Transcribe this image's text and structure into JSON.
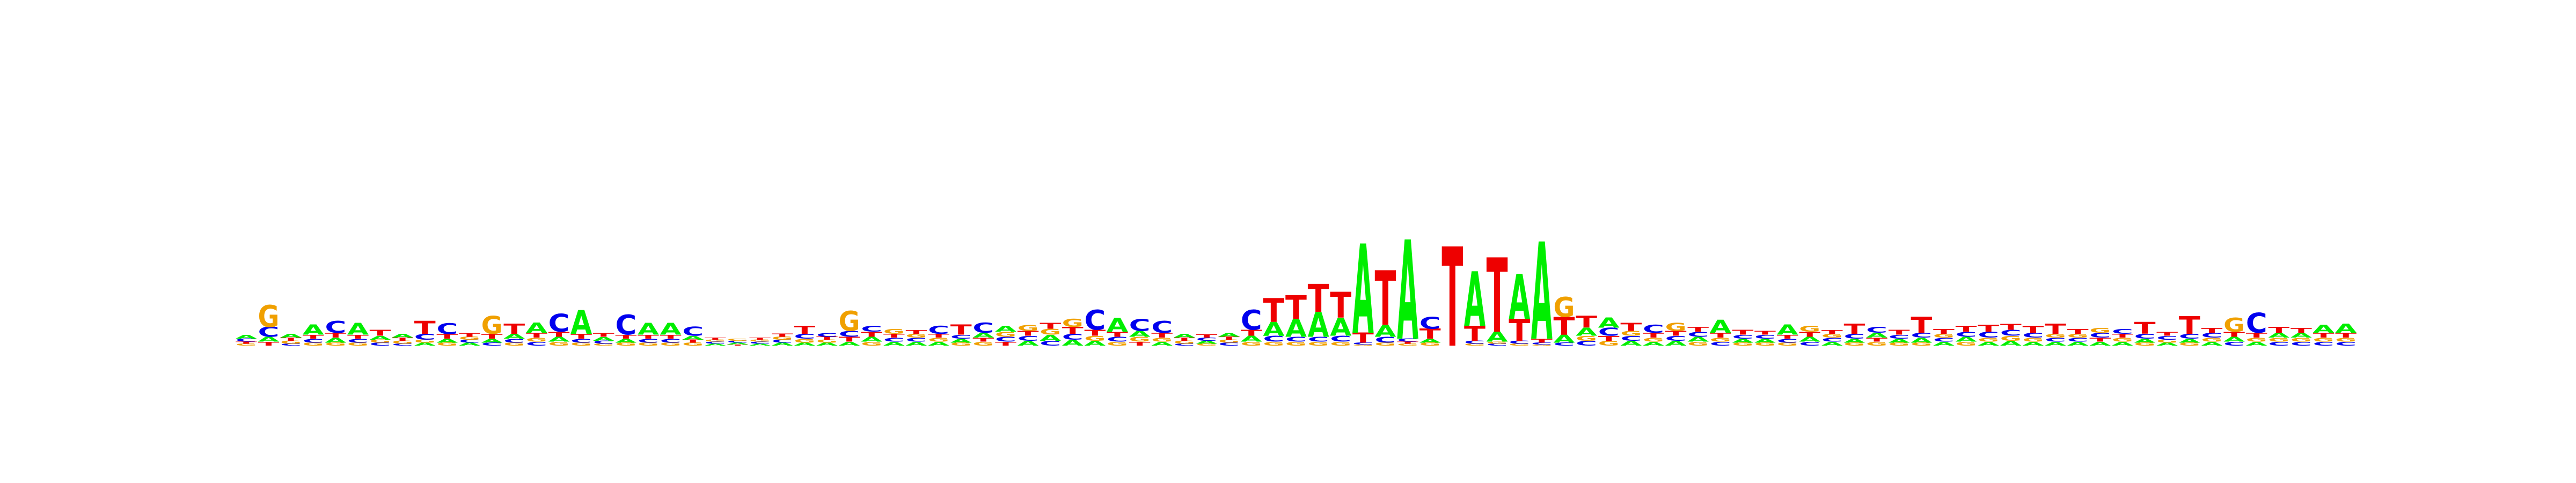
{
  "chart_data": {
    "type": "sequence-logo",
    "alphabet": [
      "A",
      "C",
      "G",
      "T"
    ],
    "colors": {
      "A": "#00ee00",
      "C": "#0000ee",
      "G": "#f0a000",
      "T": "#ee0000"
    },
    "ylim": [
      0,
      2
    ],
    "title": "",
    "xlabel": "",
    "ylabel": "",
    "axes_visible": false,
    "grid": false,
    "positions": [
      {
        "A": 0.04,
        "C": 0.03,
        "G": 0.02,
        "T": 0.02
      },
      {
        "A": 0.05,
        "C": 0.1,
        "G": 0.22,
        "T": 0.04
      },
      {
        "A": 0.04,
        "C": 0.02,
        "G": 0.03,
        "T": 0.03
      },
      {
        "A": 0.1,
        "C": 0.04,
        "G": 0.03,
        "T": 0.04
      },
      {
        "A": 0.05,
        "C": 0.12,
        "G": 0.03,
        "T": 0.05
      },
      {
        "A": 0.12,
        "C": 0.04,
        "G": 0.03,
        "T": 0.04
      },
      {
        "A": 0.04,
        "C": 0.03,
        "G": 0.03,
        "T": 0.06
      },
      {
        "A": 0.04,
        "C": 0.02,
        "G": 0.03,
        "T": 0.03
      },
      {
        "A": 0.03,
        "C": 0.06,
        "G": 0.03,
        "T": 0.13
      },
      {
        "A": 0.04,
        "C": 0.11,
        "G": 0.03,
        "T": 0.05
      },
      {
        "A": 0.03,
        "C": 0.03,
        "G": 0.03,
        "T": 0.04
      },
      {
        "A": 0.04,
        "C": 0.03,
        "G": 0.18,
        "T": 0.05
      },
      {
        "A": 0.05,
        "C": 0.04,
        "G": 0.03,
        "T": 0.1
      },
      {
        "A": 0.1,
        "C": 0.04,
        "G": 0.04,
        "T": 0.05
      },
      {
        "A": 0.05,
        "C": 0.18,
        "G": 0.04,
        "T": 0.05
      },
      {
        "A": 0.24,
        "C": 0.04,
        "G": 0.03,
        "T": 0.05
      },
      {
        "A": 0.04,
        "C": 0.03,
        "G": 0.02,
        "T": 0.04
      },
      {
        "A": 0.04,
        "C": 0.2,
        "G": 0.03,
        "T": 0.04
      },
      {
        "A": 0.12,
        "C": 0.04,
        "G": 0.03,
        "T": 0.04
      },
      {
        "A": 0.12,
        "C": 0.04,
        "G": 0.03,
        "T": 0.04
      },
      {
        "A": 0.04,
        "C": 0.09,
        "G": 0.03,
        "T": 0.03
      },
      {
        "A": 0.02,
        "C": 0.02,
        "G": 0.02,
        "T": 0.02
      },
      {
        "A": 0.02,
        "C": 0.02,
        "G": 0.02,
        "T": 0.01
      },
      {
        "A": 0.02,
        "C": 0.02,
        "G": 0.02,
        "T": 0.02
      },
      {
        "A": 0.03,
        "C": 0.03,
        "G": 0.03,
        "T": 0.03
      },
      {
        "A": 0.03,
        "C": 0.05,
        "G": 0.04,
        "T": 0.08
      },
      {
        "A": 0.03,
        "C": 0.04,
        "G": 0.03,
        "T": 0.03
      },
      {
        "A": 0.04,
        "C": 0.06,
        "G": 0.2,
        "T": 0.05
      },
      {
        "A": 0.05,
        "C": 0.06,
        "G": 0.04,
        "T": 0.05
      },
      {
        "A": 0.04,
        "C": 0.04,
        "G": 0.05,
        "T": 0.04
      },
      {
        "A": 0.04,
        "C": 0.04,
        "G": 0.04,
        "T": 0.04
      },
      {
        "A": 0.04,
        "C": 0.08,
        "G": 0.04,
        "T": 0.04
      },
      {
        "A": 0.04,
        "C": 0.04,
        "G": 0.03,
        "T": 0.1
      },
      {
        "A": 0.05,
        "C": 0.1,
        "G": 0.04,
        "T": 0.04
      },
      {
        "A": 0.06,
        "C": 0.05,
        "G": 0.05,
        "T": 0.04
      },
      {
        "A": 0.05,
        "C": 0.05,
        "G": 0.06,
        "T": 0.05
      },
      {
        "A": 0.06,
        "C": 0.05,
        "G": 0.06,
        "T": 0.06
      },
      {
        "A": 0.06,
        "C": 0.06,
        "G": 0.08,
        "T": 0.07
      },
      {
        "A": 0.05,
        "C": 0.2,
        "G": 0.05,
        "T": 0.06
      },
      {
        "A": 0.14,
        "C": 0.05,
        "G": 0.04,
        "T": 0.05
      },
      {
        "A": 0.06,
        "C": 0.12,
        "G": 0.05,
        "T": 0.04
      },
      {
        "A": 0.04,
        "C": 0.12,
        "G": 0.04,
        "T": 0.05
      },
      {
        "A": 0.04,
        "C": 0.02,
        "G": 0.03,
        "T": 0.03
      },
      {
        "A": 0.03,
        "C": 0.03,
        "G": 0.02,
        "T": 0.03
      },
      {
        "A": 0.04,
        "C": 0.03,
        "G": 0.03,
        "T": 0.03
      },
      {
        "A": 0.06,
        "C": 0.2,
        "G": 0.04,
        "T": 0.06
      },
      {
        "A": 0.14,
        "C": 0.06,
        "G": 0.04,
        "T": 0.24
      },
      {
        "A": 0.18,
        "C": 0.05,
        "G": 0.04,
        "T": 0.24
      },
      {
        "A": 0.25,
        "C": 0.05,
        "G": 0.04,
        "T": 0.28
      },
      {
        "A": 0.18,
        "C": 0.06,
        "G": 0.04,
        "T": 0.26
      },
      {
        "A": 0.9,
        "C": 0.02,
        "G": 0.01,
        "T": 0.1
      },
      {
        "A": 0.12,
        "C": 0.06,
        "G": 0.03,
        "T": 0.55
      },
      {
        "A": 1.0,
        "C": 0.03,
        "G": 0.02,
        "T": 0.02
      },
      {
        "A": 0.04,
        "C": 0.12,
        "G": 0.03,
        "T": 0.1
      },
      {
        "A": 0.0,
        "C": 0.0,
        "G": 0.0,
        "T": 1.0
      },
      {
        "A": 0.55,
        "C": 0.03,
        "G": 0.02,
        "T": 0.15
      },
      {
        "A": 0.1,
        "C": 0.02,
        "G": 0.02,
        "T": 0.75
      },
      {
        "A": 0.45,
        "C": 0.03,
        "G": 0.02,
        "T": 0.22
      },
      {
        "A": 0.98,
        "C": 0.02,
        "G": 0.01,
        "T": 0.04
      },
      {
        "A": 0.08,
        "C": 0.03,
        "G": 0.2,
        "T": 0.18
      },
      {
        "A": 0.08,
        "C": 0.05,
        "G": 0.05,
        "T": 0.12
      },
      {
        "A": 0.1,
        "C": 0.08,
        "G": 0.05,
        "T": 0.05
      },
      {
        "A": 0.05,
        "C": 0.05,
        "G": 0.05,
        "T": 0.08
      },
      {
        "A": 0.04,
        "C": 0.08,
        "G": 0.04,
        "T": 0.05
      },
      {
        "A": 0.05,
        "C": 0.05,
        "G": 0.08,
        "T": 0.05
      },
      {
        "A": 0.05,
        "C": 0.05,
        "G": 0.04,
        "T": 0.05
      },
      {
        "A": 0.13,
        "C": 0.04,
        "G": 0.04,
        "T": 0.05
      },
      {
        "A": 0.04,
        "C": 0.04,
        "G": 0.03,
        "T": 0.05
      },
      {
        "A": 0.04,
        "C": 0.04,
        "G": 0.03,
        "T": 0.04
      },
      {
        "A": 0.1,
        "C": 0.04,
        "G": 0.03,
        "T": 0.04
      },
      {
        "A": 0.05,
        "C": 0.04,
        "G": 0.06,
        "T": 0.05
      },
      {
        "A": 0.04,
        "C": 0.04,
        "G": 0.04,
        "T": 0.04
      },
      {
        "A": 0.04,
        "C": 0.05,
        "G": 0.03,
        "T": 0.1
      },
      {
        "A": 0.05,
        "C": 0.06,
        "G": 0.04,
        "T": 0.04
      },
      {
        "A": 0.04,
        "C": 0.04,
        "G": 0.03,
        "T": 0.05
      },
      {
        "A": 0.05,
        "C": 0.05,
        "G": 0.03,
        "T": 0.16
      },
      {
        "A": 0.04,
        "C": 0.04,
        "G": 0.04,
        "T": 0.05
      },
      {
        "A": 0.05,
        "C": 0.05,
        "G": 0.04,
        "T": 0.06
      },
      {
        "A": 0.04,
        "C": 0.06,
        "G": 0.04,
        "T": 0.07
      },
      {
        "A": 0.05,
        "C": 0.06,
        "G": 0.05,
        "T": 0.06
      },
      {
        "A": 0.04,
        "C": 0.05,
        "G": 0.04,
        "T": 0.07
      },
      {
        "A": 0.04,
        "C": 0.04,
        "G": 0.04,
        "T": 0.1
      },
      {
        "A": 0.04,
        "C": 0.04,
        "G": 0.04,
        "T": 0.05
      },
      {
        "A": 0.04,
        "C": 0.05,
        "G": 0.05,
        "T": 0.04
      },
      {
        "A": 0.04,
        "C": 0.05,
        "G": 0.04,
        "T": 0.04
      },
      {
        "A": 0.04,
        "C": 0.05,
        "G": 0.03,
        "T": 0.12
      },
      {
        "A": 0.03,
        "C": 0.04,
        "G": 0.03,
        "T": 0.04
      },
      {
        "A": 0.04,
        "C": 0.05,
        "G": 0.03,
        "T": 0.18
      },
      {
        "A": 0.04,
        "C": 0.05,
        "G": 0.04,
        "T": 0.05
      },
      {
        "A": 0.05,
        "C": 0.04,
        "G": 0.14,
        "T": 0.05
      },
      {
        "A": 0.04,
        "C": 0.2,
        "G": 0.04,
        "T": 0.05
      },
      {
        "A": 0.05,
        "C": 0.04,
        "G": 0.04,
        "T": 0.06
      },
      {
        "A": 0.05,
        "C": 0.04,
        "G": 0.04,
        "T": 0.05
      },
      {
        "A": 0.08,
        "C": 0.04,
        "G": 0.04,
        "T": 0.05
      },
      {
        "A": 0.09,
        "C": 0.04,
        "G": 0.04,
        "T": 0.05
      }
    ]
  }
}
